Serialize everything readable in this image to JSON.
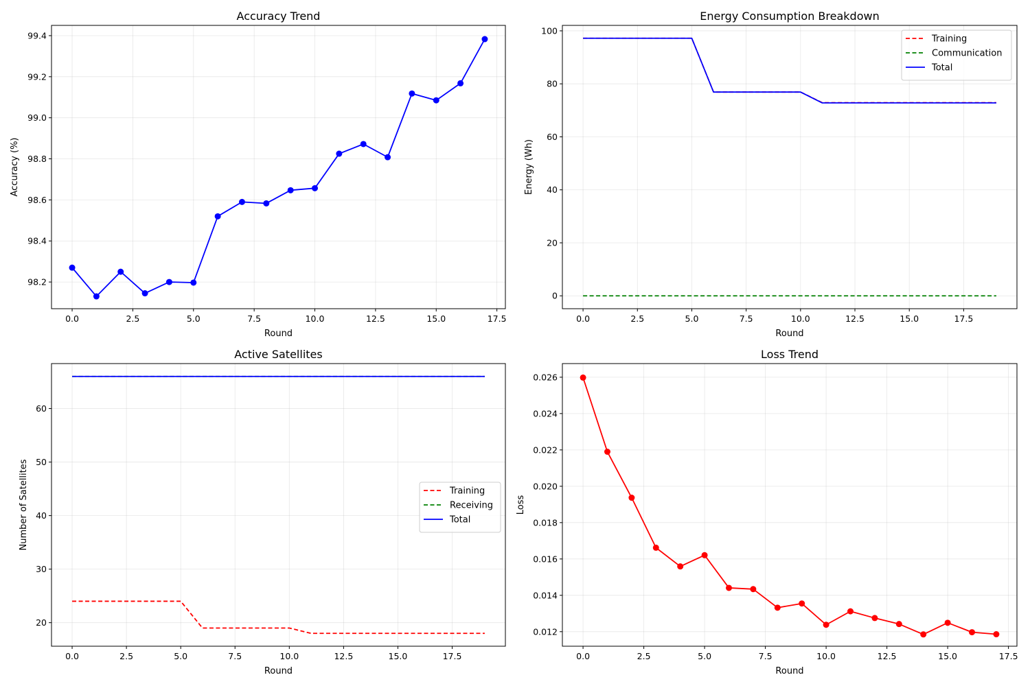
{
  "chart_data": [
    {
      "type": "line",
      "title": "Accuracy Trend",
      "xlabel": "Round",
      "ylabel": "Accuracy (%)",
      "xlim": [
        -0.85,
        17.85
      ],
      "ylim": [
        98.07,
        99.45
      ],
      "xticks": [
        0.0,
        2.5,
        5.0,
        7.5,
        10.0,
        12.5,
        15.0,
        17.5
      ],
      "xtick_labels": [
        "0.0",
        "2.5",
        "5.0",
        "7.5",
        "10.0",
        "12.5",
        "15.0",
        "17.5"
      ],
      "yticks": [
        98.2,
        98.4,
        98.6,
        98.8,
        99.0,
        99.2,
        99.4
      ],
      "ytick_labels": [
        "98.2",
        "98.4",
        "98.6",
        "98.8",
        "99.0",
        "99.2",
        "99.4"
      ],
      "grid": true,
      "series": [
        {
          "color": "#0000ff",
          "dash": "solid",
          "markers": true,
          "x": [
            0,
            1,
            2,
            3,
            4,
            5,
            6,
            7,
            8,
            9,
            10,
            11,
            12,
            13,
            14,
            15,
            16,
            17
          ],
          "values": [
            98.27,
            98.13,
            98.25,
            98.145,
            98.2,
            98.197,
            98.52,
            98.59,
            98.583,
            98.647,
            98.657,
            98.825,
            98.872,
            98.808,
            99.118,
            99.085,
            99.168,
            99.383
          ]
        }
      ]
    },
    {
      "type": "line",
      "title": "Energy Consumption Breakdown",
      "xlabel": "Round",
      "ylabel": "Energy (Wh)",
      "xlim": [
        -0.95,
        19.95
      ],
      "ylim": [
        -4.86,
        102.06
      ],
      "xticks": [
        0.0,
        2.5,
        5.0,
        7.5,
        10.0,
        12.5,
        15.0,
        17.5
      ],
      "xtick_labels": [
        "0.0",
        "2.5",
        "5.0",
        "7.5",
        "10.0",
        "12.5",
        "15.0",
        "17.5"
      ],
      "yticks": [
        0,
        20,
        40,
        60,
        80,
        100
      ],
      "ytick_labels": [
        "0",
        "20",
        "40",
        "60",
        "80",
        "100"
      ],
      "grid": true,
      "legend": "top-right",
      "series": [
        {
          "name": "Training",
          "color": "#ff0000",
          "dash": "dashed",
          "x": [
            0,
            1,
            2,
            3,
            4,
            5,
            6,
            7,
            8,
            9,
            10,
            11,
            12,
            13,
            14,
            15,
            16,
            17,
            18,
            19
          ],
          "values": [
            97.2,
            97.2,
            97.2,
            97.2,
            97.2,
            97.2,
            76.9,
            76.9,
            76.9,
            76.9,
            76.9,
            72.9,
            72.9,
            72.9,
            72.9,
            72.9,
            72.9,
            72.9,
            72.9,
            72.9
          ]
        },
        {
          "name": "Communication",
          "color": "#008000",
          "dash": "dashed",
          "x": [
            0,
            1,
            2,
            3,
            4,
            5,
            6,
            7,
            8,
            9,
            10,
            11,
            12,
            13,
            14,
            15,
            16,
            17,
            18,
            19
          ],
          "values": [
            0,
            0,
            0,
            0,
            0,
            0,
            0,
            0,
            0,
            0,
            0,
            0,
            0,
            0,
            0,
            0,
            0,
            0,
            0,
            0
          ]
        },
        {
          "name": "Total",
          "color": "#0000ff",
          "dash": "solid",
          "x": [
            0,
            1,
            2,
            3,
            4,
            5,
            6,
            7,
            8,
            9,
            10,
            11,
            12,
            13,
            14,
            15,
            16,
            17,
            18,
            19
          ],
          "values": [
            97.2,
            97.2,
            97.2,
            97.2,
            97.2,
            97.2,
            76.9,
            76.9,
            76.9,
            76.9,
            76.9,
            72.8,
            72.8,
            72.8,
            72.8,
            72.8,
            72.8,
            72.8,
            72.8,
            72.8
          ]
        }
      ]
    },
    {
      "type": "line",
      "title": "Active Satellites",
      "xlabel": "Round",
      "ylabel": "Number of Satellites",
      "xlim": [
        -0.95,
        19.95
      ],
      "ylim": [
        15.6,
        68.4
      ],
      "xticks": [
        0.0,
        2.5,
        5.0,
        7.5,
        10.0,
        12.5,
        15.0,
        17.5
      ],
      "xtick_labels": [
        "0.0",
        "2.5",
        "5.0",
        "7.5",
        "10.0",
        "12.5",
        "15.0",
        "17.5"
      ],
      "yticks": [
        20,
        30,
        40,
        50,
        60
      ],
      "ytick_labels": [
        "20",
        "30",
        "40",
        "50",
        "60"
      ],
      "grid": true,
      "legend": "center-right",
      "series": [
        {
          "name": "Training",
          "color": "#ff0000",
          "dash": "dashed",
          "x": [
            0,
            1,
            2,
            3,
            4,
            5,
            6,
            7,
            8,
            9,
            10,
            11,
            12,
            13,
            14,
            15,
            16,
            17,
            18,
            19
          ],
          "values": [
            24,
            24,
            24,
            24,
            24,
            24,
            19,
            19,
            19,
            19,
            19,
            18,
            18,
            18,
            18,
            18,
            18,
            18,
            18,
            18
          ]
        },
        {
          "name": "Receiving",
          "color": "#008000",
          "dash": "dashed",
          "x": [
            0,
            1,
            2,
            3,
            4,
            5,
            6,
            7,
            8,
            9,
            10,
            11,
            12,
            13,
            14,
            15,
            16,
            17,
            18,
            19
          ],
          "values": [
            66,
            66,
            66,
            66,
            66,
            66,
            66,
            66,
            66,
            66,
            66,
            66,
            66,
            66,
            66,
            66,
            66,
            66,
            66,
            66
          ]
        },
        {
          "name": "Total",
          "color": "#0000ff",
          "dash": "solid",
          "x": [
            0,
            1,
            2,
            3,
            4,
            5,
            6,
            7,
            8,
            9,
            10,
            11,
            12,
            13,
            14,
            15,
            16,
            17,
            18,
            19
          ],
          "values": [
            66,
            66,
            66,
            66,
            66,
            66,
            66,
            66,
            66,
            66,
            66,
            66,
            66,
            66,
            66,
            66,
            66,
            66,
            66,
            66
          ]
        }
      ]
    },
    {
      "type": "line",
      "title": "Loss Trend",
      "xlabel": "Round",
      "ylabel": "Loss",
      "xlim": [
        -0.85,
        17.85
      ],
      "ylim": [
        0.0112,
        0.02675
      ],
      "xticks": [
        0.0,
        2.5,
        5.0,
        7.5,
        10.0,
        12.5,
        15.0,
        17.5
      ],
      "xtick_labels": [
        "0.0",
        "2.5",
        "5.0",
        "7.5",
        "10.0",
        "12.5",
        "15.0",
        "17.5"
      ],
      "yticks": [
        0.012,
        0.014,
        0.016,
        0.018,
        0.02,
        0.022,
        0.024,
        0.026
      ],
      "ytick_labels": [
        "0.012",
        "0.014",
        "0.016",
        "0.018",
        "0.020",
        "0.022",
        "0.024",
        "0.026"
      ],
      "grid": true,
      "series": [
        {
          "color": "#ff0000",
          "dash": "solid",
          "markers": true,
          "x": [
            0,
            1,
            2,
            3,
            4,
            5,
            6,
            7,
            8,
            9,
            10,
            11,
            12,
            13,
            14,
            15,
            16,
            17
          ],
          "values": [
            0.02598,
            0.0219,
            0.01937,
            0.01662,
            0.01559,
            0.01621,
            0.01441,
            0.01434,
            0.01332,
            0.01355,
            0.01238,
            0.01312,
            0.01275,
            0.01242,
            0.01185,
            0.01249,
            0.01197,
            0.01186
          ]
        }
      ]
    }
  ]
}
